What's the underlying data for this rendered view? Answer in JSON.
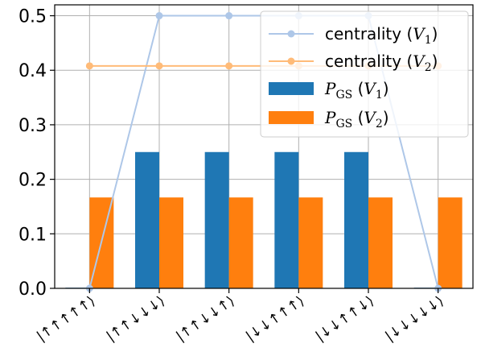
{
  "chart_data": {
    "type": "bar",
    "categories": [
      "|↑↑↑↑↑⟩",
      "|↑↑↓↓↓⟩",
      "|↑↑↓↓↑⟩",
      "|↓↓↑↑↑⟩",
      "|↓↓↑↑↓⟩",
      "|↓↓↓↓↓⟩"
    ],
    "series": [
      {
        "name": "P_GS (V_1)",
        "kind": "bar",
        "color": "#1f77b4",
        "values": [
          0.0,
          0.25,
          0.25,
          0.25,
          0.25,
          0.0
        ]
      },
      {
        "name": "P_GS (V_2)",
        "kind": "bar",
        "color": "#ff7f0e",
        "values": [
          0.1667,
          0.1667,
          0.1667,
          0.1667,
          0.1667,
          0.1667
        ]
      },
      {
        "name": "centrality (V_1)",
        "kind": "line",
        "color": "#aec7e8",
        "values": [
          0.0,
          0.5,
          0.5,
          0.5,
          0.5,
          0.0
        ]
      },
      {
        "name": "centrality (V_2)",
        "kind": "line",
        "color": "#ffbb78",
        "values": [
          0.408,
          0.408,
          0.408,
          0.408,
          0.408,
          0.408
        ]
      }
    ],
    "ylim": [
      0,
      0.52
    ],
    "yticks": [
      "0.0",
      "0.1",
      "0.2",
      "0.3",
      "0.4",
      "0.5"
    ],
    "grid": true,
    "legend_position": "top-right",
    "legend": [
      {
        "label": "centrality",
        "sub_var": "V",
        "sub_idx": "1",
        "kind": "line",
        "color": "#aec7e8"
      },
      {
        "label": "centrality",
        "sub_var": "V",
        "sub_idx": "2",
        "kind": "line",
        "color": "#ffbb78"
      },
      {
        "label": "P",
        "label_sub": "GS",
        "sub_var": "V",
        "sub_idx": "1",
        "kind": "bar",
        "color": "#1f77b4"
      },
      {
        "label": "P",
        "label_sub": "GS",
        "sub_var": "V",
        "sub_idx": "2",
        "kind": "bar",
        "color": "#ff7f0e"
      }
    ]
  }
}
